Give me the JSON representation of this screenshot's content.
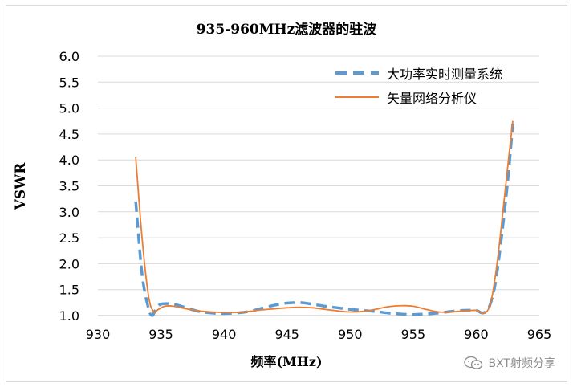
{
  "chart_data": {
    "type": "line",
    "title": "935-960MHz滤波器的驻波",
    "xlabel": "频率(MHz)",
    "ylabel": "VSWR",
    "xlim": [
      930,
      965
    ],
    "ylim": [
      1.0,
      6.0
    ],
    "x_ticks": [
      "930",
      "935",
      "940",
      "945",
      "950",
      "955",
      "960",
      "965"
    ],
    "y_ticks": [
      "1.0",
      "1.5",
      "2.0",
      "2.5",
      "3.0",
      "3.5",
      "4.0",
      "4.5",
      "5.0",
      "5.5",
      "6.0"
    ],
    "grid": "horizontal",
    "legend_position": "top-right",
    "series": [
      {
        "name": "大功率实时测量系统",
        "color": "#5b9bd5",
        "style": "dashed",
        "points": [
          [
            933.0,
            3.2
          ],
          [
            933.5,
            1.8
          ],
          [
            934.0,
            1.15
          ],
          [
            934.3,
            1.0
          ],
          [
            934.6,
            1.12
          ],
          [
            935.0,
            1.22
          ],
          [
            936.0,
            1.22
          ],
          [
            937.0,
            1.15
          ],
          [
            938.0,
            1.08
          ],
          [
            939.0,
            1.05
          ],
          [
            940.0,
            1.04
          ],
          [
            941.0,
            1.05
          ],
          [
            942.0,
            1.08
          ],
          [
            943.0,
            1.14
          ],
          [
            944.0,
            1.2
          ],
          [
            945.0,
            1.24
          ],
          [
            946.0,
            1.25
          ],
          [
            947.0,
            1.22
          ],
          [
            948.0,
            1.18
          ],
          [
            949.0,
            1.15
          ],
          [
            950.0,
            1.12
          ],
          [
            951.0,
            1.1
          ],
          [
            952.0,
            1.08
          ],
          [
            953.0,
            1.05
          ],
          [
            954.0,
            1.03
          ],
          [
            955.0,
            1.02
          ],
          [
            956.0,
            1.03
          ],
          [
            957.0,
            1.05
          ],
          [
            958.0,
            1.08
          ],
          [
            959.0,
            1.1
          ],
          [
            960.0,
            1.1
          ],
          [
            960.5,
            1.05
          ],
          [
            961.0,
            1.15
          ],
          [
            961.5,
            1.6
          ],
          [
            962.0,
            2.5
          ],
          [
            962.5,
            3.6
          ],
          [
            962.9,
            4.7
          ]
        ]
      },
      {
        "name": "矢量网络分析仪",
        "color": "#ed7d31",
        "style": "solid",
        "points": [
          [
            933.0,
            4.05
          ],
          [
            933.5,
            2.5
          ],
          [
            934.0,
            1.4
          ],
          [
            934.4,
            1.08
          ],
          [
            934.8,
            1.12
          ],
          [
            935.3,
            1.18
          ],
          [
            936.0,
            1.18
          ],
          [
            937.0,
            1.13
          ],
          [
            938.0,
            1.09
          ],
          [
            939.0,
            1.07
          ],
          [
            940.0,
            1.06
          ],
          [
            941.0,
            1.06
          ],
          [
            942.0,
            1.08
          ],
          [
            943.0,
            1.11
          ],
          [
            944.0,
            1.13
          ],
          [
            945.0,
            1.15
          ],
          [
            946.0,
            1.16
          ],
          [
            947.0,
            1.15
          ],
          [
            948.0,
            1.12
          ],
          [
            949.0,
            1.09
          ],
          [
            950.0,
            1.07
          ],
          [
            951.0,
            1.08
          ],
          [
            952.0,
            1.12
          ],
          [
            953.0,
            1.17
          ],
          [
            954.0,
            1.19
          ],
          [
            955.0,
            1.18
          ],
          [
            956.0,
            1.12
          ],
          [
            957.0,
            1.07
          ],
          [
            958.0,
            1.07
          ],
          [
            959.0,
            1.09
          ],
          [
            960.0,
            1.1
          ],
          [
            960.7,
            1.05
          ],
          [
            961.2,
            1.3
          ],
          [
            961.7,
            2.1
          ],
          [
            962.2,
            3.2
          ],
          [
            962.6,
            4.1
          ],
          [
            962.9,
            4.75
          ]
        ]
      }
    ]
  },
  "watermark": {
    "text": "BXT射频分享",
    "icon": "wechat-icon"
  }
}
